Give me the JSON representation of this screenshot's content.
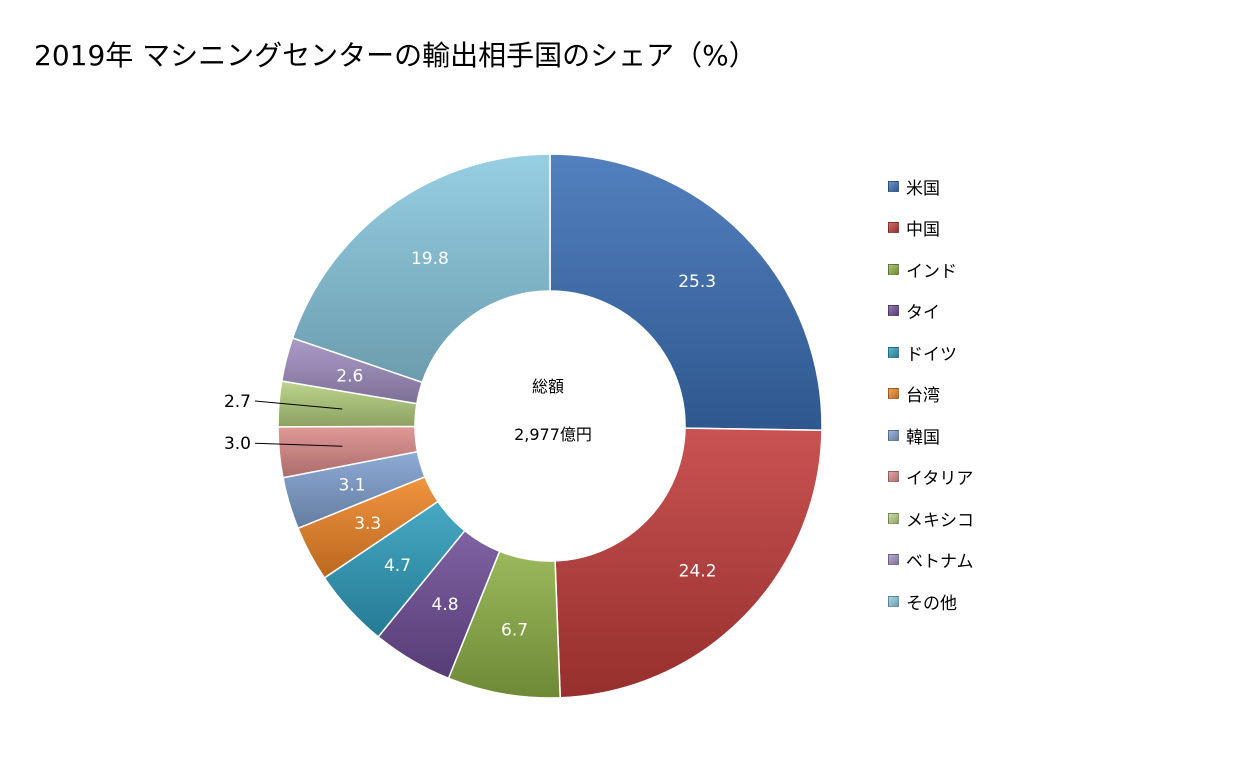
{
  "title": "2019年 マシニングセンターの輸出相手国のシェア（%）",
  "center": {
    "label": "総額",
    "total": "2,977億円"
  },
  "chart_data": {
    "type": "pie",
    "subtype": "doughnut",
    "title": "2019年 マシニングセンターの輸出相手国のシェア（%）",
    "categories": [
      "米国",
      "中国",
      "インド",
      "タイ",
      "ドイツ",
      "台湾",
      "韓国",
      "イタリア",
      "メキシコ",
      "ベトナム",
      "その他"
    ],
    "values": [
      25.3,
      24.2,
      6.7,
      4.8,
      4.7,
      3.3,
      3.1,
      3.0,
      2.7,
      2.6,
      19.8
    ],
    "labels": [
      "25.3",
      "24.2",
      "6.7",
      "4.8",
      "4.7",
      "3.3",
      "3.1",
      "3.0",
      "2.7",
      "2.6",
      "19.8"
    ],
    "colors": [
      "#3b6fb6",
      "#c03c3a",
      "#8db045",
      "#6e4d96",
      "#2e9dbc",
      "#ef8526",
      "#7f9fcf",
      "#db8b89",
      "#b4cf7e",
      "#a08fc0",
      "#89c8df"
    ],
    "label_colors": [
      "#ffffff",
      "#ffffff",
      "#ffffff",
      "#ffffff",
      "#ffffff",
      "#ffffff",
      "#ffffff",
      "#000000",
      "#000000",
      "#ffffff",
      "#ffffff"
    ],
    "outside_labels": [
      7,
      8
    ],
    "legend_position": "right",
    "start_angle": "12 o'clock",
    "direction": "clockwise"
  }
}
